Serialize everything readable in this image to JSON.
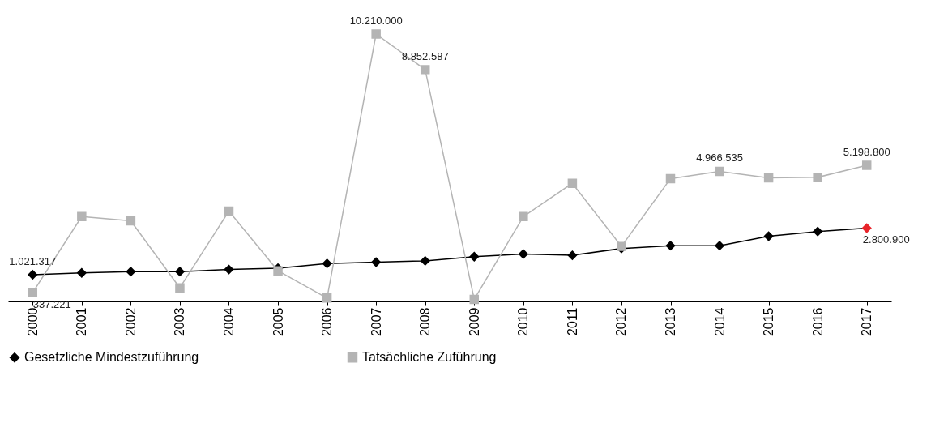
{
  "chart_data": {
    "type": "line",
    "categories": [
      "2000",
      "2001",
      "2002",
      "2003",
      "2004",
      "2005",
      "2006",
      "2007",
      "2008",
      "2009",
      "2010",
      "2011",
      "2012",
      "2013",
      "2014",
      "2015",
      "2016",
      "2017"
    ],
    "series": [
      {
        "name": "Gesetzliche Mindestzuführung",
        "color": "#000000",
        "marker": "diamond",
        "values": [
          1021317,
          1090000,
          1140000,
          1140000,
          1220000,
          1270000,
          1450000,
          1500000,
          1550000,
          1710000,
          1810000,
          1760000,
          2020000,
          2130000,
          2130000,
          2490000,
          2670000,
          2800900
        ],
        "value_labels": [
          "1.021.317",
          null,
          null,
          null,
          null,
          null,
          null,
          null,
          null,
          null,
          null,
          null,
          null,
          null,
          null,
          null,
          null,
          "2.800.900"
        ],
        "colors": [
          "#000000",
          "#000000",
          "#000000",
          "#000000",
          "#000000",
          "#000000",
          "#000000",
          "#000000",
          "#000000",
          "#000000",
          "#000000",
          "#000000",
          "#000000",
          "#000000",
          "#000000",
          "#000000",
          "#000000",
          "#e8242a"
        ]
      },
      {
        "name": "Tatsächliche Zuführung",
        "color": "#b4b4b4",
        "marker": "square",
        "values": [
          337221,
          3240000,
          3080000,
          520000,
          3450000,
          1170000,
          130000,
          10210000,
          8852587,
          80000,
          3240000,
          4510000,
          2100000,
          4690000,
          4966535,
          4720000,
          4740000,
          5198800
        ],
        "value_labels": [
          "337.221",
          null,
          null,
          null,
          null,
          null,
          null,
          "10.210.000",
          "8.852.587",
          null,
          null,
          null,
          null,
          null,
          "4.966.535",
          null,
          null,
          "5.198.800"
        ]
      }
    ],
    "legend": "bottom",
    "grid": false
  }
}
